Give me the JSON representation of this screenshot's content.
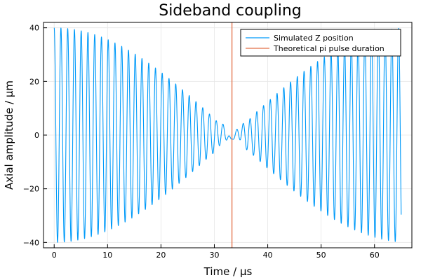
{
  "chart_data": {
    "type": "line",
    "title": "Sideband coupling",
    "xlabel": "Time / μs",
    "ylabel": "Axial amplitude / μm",
    "xlim": [
      -2,
      67
    ],
    "ylim": [
      -42,
      42
    ],
    "xticks": [
      0,
      10,
      20,
      30,
      40,
      50,
      60
    ],
    "xtick_labels": [
      "0",
      "10",
      "20",
      "30",
      "40",
      "50",
      "60"
    ],
    "yticks": [
      -40,
      -20,
      0,
      20,
      40
    ],
    "ytick_labels": [
      "−40",
      "−20",
      "0",
      "20",
      "40"
    ],
    "grid": true,
    "legend_position": "top-right",
    "series": [
      {
        "name": "Simulated Z position",
        "color": "#009af9",
        "kind": "damped-beat",
        "amplitude": 40,
        "carrier_period": 1.265,
        "envelope_zero": 33.3,
        "t_start": 0,
        "t_end": 65,
        "residual_amplitude": 1.5
      },
      {
        "name": "Theoretical pi pulse duration",
        "color": "#e26f46",
        "kind": "vline",
        "x": 33.3
      }
    ]
  }
}
